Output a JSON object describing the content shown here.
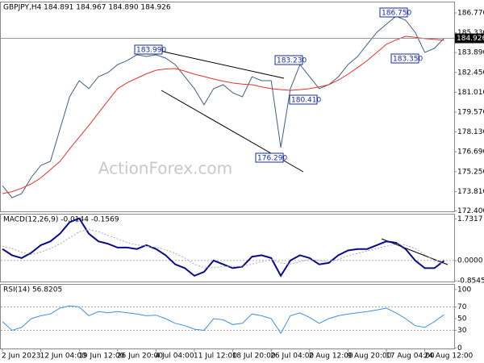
{
  "chart_data": [
    {
      "type": "line",
      "title": "GBPJPY,H4 184.891 184.967 184.890 184.926",
      "watermark": "ActionForex.com",
      "categories": [
        "2 Jun 2023",
        null,
        null,
        null,
        "12 Jun 04:00",
        null,
        null,
        null,
        "19 Jun 12:00",
        null,
        null,
        null,
        "26 Jun 20:00",
        null,
        null,
        null,
        "4 Jul 04:00",
        null,
        null,
        null,
        "11 Jul 12:00",
        null,
        null,
        null,
        "18 Jul 20:00",
        null,
        null,
        null,
        "26 Jul 04:00",
        null,
        null,
        null,
        "2 Aug 12:00",
        null,
        null,
        null,
        "9 Aug 20:00",
        null,
        null,
        null,
        "17 Aug 04:00",
        null,
        null,
        null,
        "24 Aug 12:00",
        null,
        null
      ],
      "series": [
        {
          "name": "GBPJPY",
          "color": "#3d5f80",
          "values": [
            174.24,
            173.36,
            173.66,
            174.83,
            175.7,
            176.0,
            178.34,
            180.68,
            181.85,
            181.27,
            182.14,
            182.44,
            183.02,
            183.31,
            183.73,
            183.61,
            183.73,
            183.49,
            183.02,
            182.14,
            181.27,
            180.1,
            181.27,
            181.56,
            180.97,
            180.68,
            182.14,
            181.85,
            181.85,
            177.0,
            181.27,
            183.02,
            182.14,
            181.27,
            181.56,
            182.14,
            183.02,
            183.61,
            184.49,
            185.36,
            185.95,
            186.53,
            186.24,
            185.36,
            183.9,
            184.2,
            184.926
          ]
        },
        {
          "name": "MA",
          "color": "#e3322b",
          "values": [
            173.66,
            173.8,
            174.05,
            174.36,
            174.8,
            175.4,
            176.0,
            176.9,
            177.75,
            178.6,
            179.5,
            180.4,
            181.27,
            181.7,
            182.03,
            182.35,
            182.61,
            182.7,
            182.73,
            182.55,
            182.32,
            182.15,
            181.97,
            181.82,
            181.68,
            181.6,
            181.56,
            181.4,
            181.27,
            181.2,
            181.15,
            181.2,
            181.27,
            181.4,
            181.56,
            181.9,
            182.32,
            182.8,
            183.31,
            183.9,
            184.49,
            184.8,
            185.07,
            185.0,
            184.9,
            184.85,
            184.78
          ]
        }
      ],
      "annotations": [
        "183.990",
        "183.230",
        "180.410",
        "176.290",
        "186.750",
        "183.350"
      ],
      "ylim": [
        172.37,
        187.53
      ],
      "yticks": [
        {
          "value": 186.77,
          "label": "186.770"
        },
        {
          "value": 185.33,
          "label": "185.330"
        },
        {
          "value": 183.89,
          "label": "183.890"
        },
        {
          "value": 182.45,
          "label": "182.450"
        },
        {
          "value": 181.01,
          "label": "181.010"
        },
        {
          "value": 179.57,
          "label": "179.570"
        },
        {
          "value": 178.13,
          "label": "178.130"
        },
        {
          "value": 176.69,
          "label": "176.690"
        },
        {
          "value": 175.25,
          "label": "175.250"
        },
        {
          "value": 173.81,
          "label": "173.810"
        },
        {
          "value": 172.4,
          "label": "172.400"
        }
      ]
    },
    {
      "type": "line",
      "title": "MACD(12,26,9) -0.0144 -0.1569",
      "series": [
        {
          "name": "MACD",
          "color": "#0a0a8c",
          "values": [
            0.48,
            0.22,
            0.1,
            0.32,
            0.64,
            0.8,
            1.12,
            1.6,
            1.76,
            1.12,
            0.8,
            0.7,
            0.54,
            0.54,
            0.48,
            0.64,
            0.48,
            0.22,
            -0.16,
            -0.32,
            -0.64,
            -0.48,
            0,
            -0.16,
            -0.32,
            -0.26,
            0.16,
            0.22,
            0.1,
            -0.64,
            0,
            0.22,
            0.1,
            -0.16,
            -0.1,
            0.22,
            0.42,
            0.48,
            0.48,
            0.64,
            0.8,
            0.74,
            0.48,
            0,
            -0.32,
            -0.32,
            -0.0144
          ]
        },
        {
          "name": "Signal",
          "color": "#a8a8a8",
          "values": [
            0.6,
            0.5,
            0.35,
            0.25,
            0.35,
            0.5,
            0.7,
            0.95,
            1.2,
            1.3,
            1.2,
            1.05,
            0.9,
            0.75,
            0.65,
            0.6,
            0.55,
            0.45,
            0.3,
            0.1,
            -0.15,
            -0.3,
            -0.3,
            -0.25,
            -0.25,
            -0.25,
            -0.15,
            -0.05,
            0.05,
            -0.1,
            -0.15,
            -0.05,
            0.05,
            0.0,
            -0.05,
            0.05,
            0.2,
            0.3,
            0.4,
            0.5,
            0.6,
            0.68,
            0.65,
            0.5,
            0.25,
            0.0,
            -0.1569
          ]
        }
      ],
      "ylim": [
        -0.88,
        1.92
      ],
      "yticks": [
        {
          "value": 1.7317,
          "label": "1.7317"
        },
        {
          "value": 0,
          "label": "0.0000"
        },
        {
          "value": -0.8545,
          "label": "-0.8545"
        }
      ]
    },
    {
      "type": "line",
      "title": "RSI(14) 56.8205",
      "series": [
        {
          "name": "RSI",
          "color": "#3f8fe0",
          "values": [
            45,
            30,
            35,
            50,
            55,
            58,
            68,
            72,
            70,
            55,
            62,
            60,
            62,
            60,
            58,
            55,
            56,
            50,
            42,
            38,
            32,
            30,
            50,
            48,
            40,
            42,
            58,
            55,
            50,
            25,
            55,
            60,
            52,
            42,
            50,
            55,
            58,
            60,
            62,
            65,
            68,
            60,
            50,
            38,
            35,
            45,
            56.8205
          ]
        }
      ],
      "ylim": [
        -1,
        108
      ],
      "yticks": [
        100,
        70,
        50,
        30,
        0
      ]
    }
  ]
}
